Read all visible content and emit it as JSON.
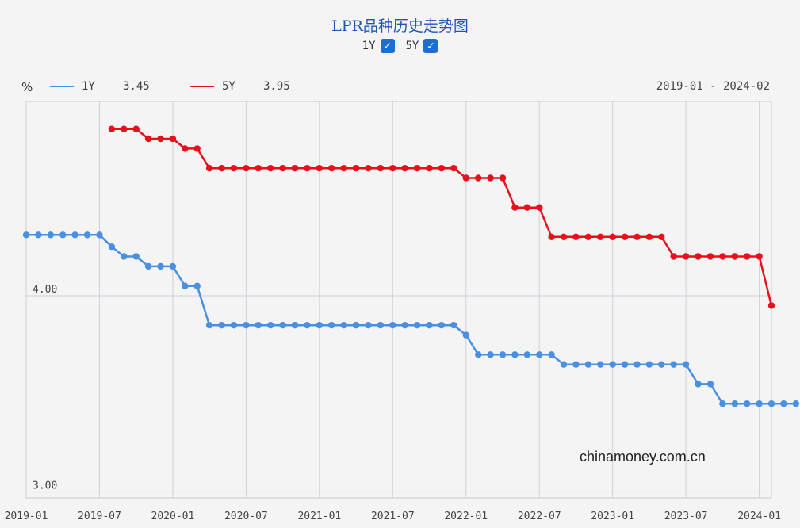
{
  "chart_data": {
    "type": "line",
    "title": "LPR品种历史走势图",
    "unit": "%",
    "date_range": "2019-01 - 2024-02",
    "x_ticks": [
      "2019-01",
      "2019-07",
      "2020-01",
      "2020-07",
      "2021-01",
      "2021-07",
      "2022-01",
      "2022-07",
      "2023-01",
      "2023-07",
      "2024-01"
    ],
    "y_ticks": [
      {
        "value": 4.0,
        "label": "4.00"
      },
      {
        "value": 3.0,
        "label": "3.00"
      }
    ],
    "ylim": [
      2.97,
      4.99
    ],
    "x_start": "2019-01",
    "x_end": "2024-02",
    "grid": true,
    "series": [
      {
        "name": "1Y",
        "latest": "3.45",
        "color": "#4a90e2",
        "start": "2019-01",
        "values": [
          4.31,
          4.31,
          4.31,
          4.31,
          4.31,
          4.31,
          4.31,
          4.25,
          4.2,
          4.2,
          4.15,
          4.15,
          4.15,
          4.05,
          4.05,
          3.85,
          3.85,
          3.85,
          3.85,
          3.85,
          3.85,
          3.85,
          3.85,
          3.85,
          3.85,
          3.85,
          3.85,
          3.85,
          3.85,
          3.85,
          3.85,
          3.85,
          3.85,
          3.85,
          3.85,
          3.85,
          3.8,
          3.7,
          3.7,
          3.7,
          3.7,
          3.7,
          3.7,
          3.7,
          3.65,
          3.65,
          3.65,
          3.65,
          3.65,
          3.65,
          3.65,
          3.65,
          3.65,
          3.65,
          3.65,
          3.55,
          3.55,
          3.45,
          3.45,
          3.45,
          3.45,
          3.45,
          3.45,
          3.45
        ]
      },
      {
        "name": "5Y",
        "latest": "3.95",
        "color": "#e8101a",
        "start": "2019-08",
        "values": [
          4.85,
          4.85,
          4.85,
          4.8,
          4.8,
          4.8,
          4.75,
          4.75,
          4.65,
          4.65,
          4.65,
          4.65,
          4.65,
          4.65,
          4.65,
          4.65,
          4.65,
          4.65,
          4.65,
          4.65,
          4.65,
          4.65,
          4.65,
          4.65,
          4.65,
          4.65,
          4.65,
          4.65,
          4.65,
          4.6,
          4.6,
          4.6,
          4.6,
          4.45,
          4.45,
          4.45,
          4.3,
          4.3,
          4.3,
          4.3,
          4.3,
          4.3,
          4.3,
          4.3,
          4.3,
          4.3,
          4.2,
          4.2,
          4.2,
          4.2,
          4.2,
          4.2,
          4.2,
          4.2,
          3.95
        ]
      }
    ]
  },
  "watermark": "chinamoney.com.cn",
  "toggles": {
    "one_year": "1Y",
    "five_year": "5Y"
  }
}
